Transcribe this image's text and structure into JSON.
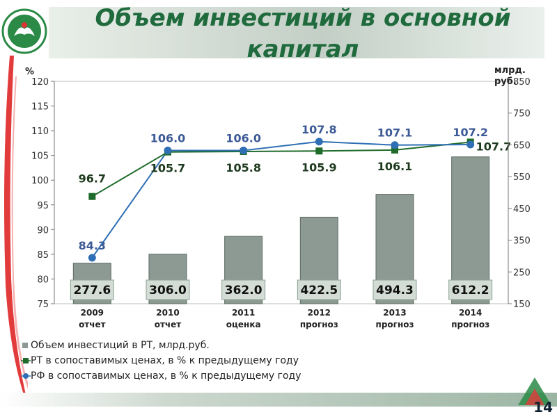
{
  "title": "Объем инвестиций в основной капитал",
  "page_number": "14",
  "chart_data": {
    "type": "bar",
    "categories": [
      {
        "year": "2009",
        "sub": "отчет"
      },
      {
        "year": "2010",
        "sub": "отчет"
      },
      {
        "year": "2011",
        "sub": "оценка"
      },
      {
        "year": "2012",
        "sub": "прогноз"
      },
      {
        "year": "2013",
        "sub": "прогноз"
      },
      {
        "year": "2014",
        "sub": "прогноз"
      }
    ],
    "left_axis": {
      "unit": "%",
      "min": 75,
      "max": 120,
      "step": 5
    },
    "right_axis": {
      "unit": "млрд. руб.",
      "min": 150,
      "max": 850,
      "step": 100
    },
    "series": [
      {
        "name": "Объем инвестиций в РТ, млрд.руб.",
        "type": "bar",
        "axis": "right",
        "color": "#8c9a93",
        "values": [
          277.6,
          306.0,
          362.0,
          422.5,
          494.3,
          612.2
        ],
        "labels": [
          "277.6",
          "306.0",
          "362.0",
          "422.5",
          "494.3",
          "612.2"
        ]
      },
      {
        "name": "РТ в сопоставимых ценах, в % к предыдущему году",
        "type": "line",
        "axis": "left",
        "color": "#1e6b2a",
        "values": [
          96.7,
          105.7,
          105.8,
          105.9,
          106.1,
          107.7
        ],
        "labels": [
          "96.7",
          "105.7",
          "105.8",
          "105.9",
          "106.1",
          "107.7"
        ]
      },
      {
        "name": "РФ в сопоставимых ценах, в % к предыдущему году",
        "type": "line",
        "axis": "left",
        "color": "#2f6fb5",
        "values": [
          84.3,
          106.0,
          106.0,
          107.8,
          107.1,
          107.2
        ],
        "labels": [
          "84.3",
          "106.0",
          "106.0",
          "107.8",
          "107.1",
          "107.2"
        ]
      }
    ]
  }
}
